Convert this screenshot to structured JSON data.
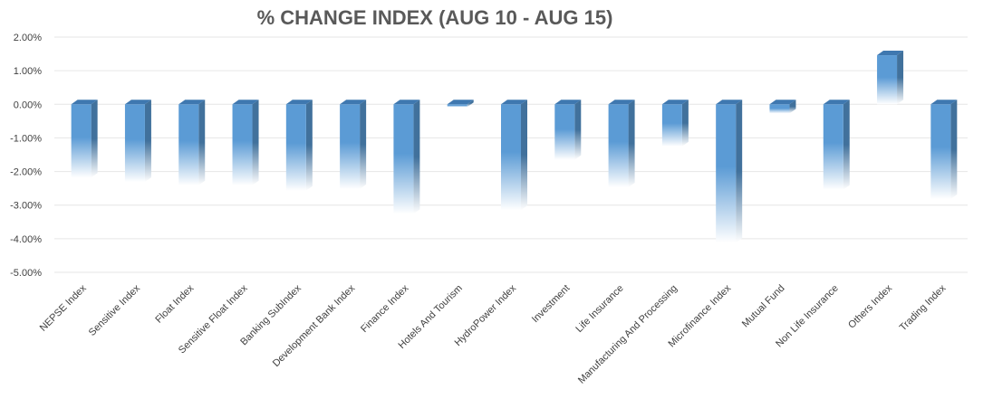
{
  "chart_data": {
    "type": "bar",
    "title": "% CHANGE INDEX (AUG 10 - AUG 15)",
    "xlabel": "",
    "ylabel": "",
    "ylim": [
      -5,
      2
    ],
    "yticks": [
      2,
      1,
      0,
      -1,
      -2,
      -3,
      -4,
      -5
    ],
    "ytick_labels": [
      "2.00%",
      "1.00%",
      "0.00%",
      "-1.00%",
      "-2.00%",
      "-3.00%",
      "-4.00%",
      "-5.00%"
    ],
    "grid": true,
    "legend": "none",
    "categories": [
      "NEPSE Index",
      "Sensitive Index",
      "Float Index",
      "Sensitive Float Index",
      "Banking SubIndex",
      "Development Bank Index",
      "Finance Index",
      "Hotels And Tourism",
      "HydroPower Index",
      "Investment",
      "Life Insurance",
      "Manufacturing And Processing",
      "Microfinance Index",
      "Mutual Fund",
      "Non Life Insurance",
      "Others Index",
      "Trading Index"
    ],
    "values": [
      -2.18,
      -2.31,
      -2.41,
      -2.41,
      -2.57,
      -2.52,
      -3.26,
      -0.08,
      -3.15,
      -1.65,
      -2.47,
      -1.25,
      -4.12,
      -0.27,
      -2.54,
      1.46,
      -2.82
    ],
    "colors": {
      "bar_light": "#5b9bd5",
      "bar_dark": "#41719c",
      "bar_fade": "#ffffff"
    }
  }
}
